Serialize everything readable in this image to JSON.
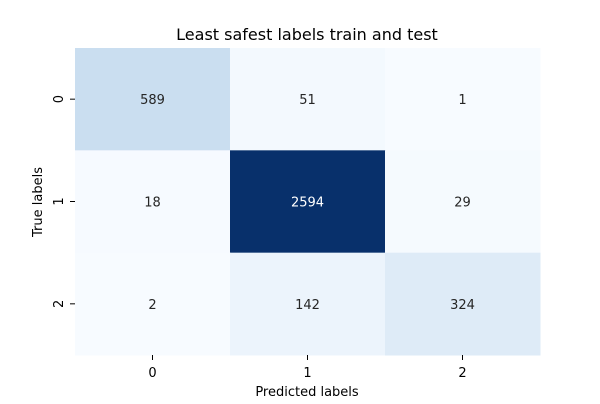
{
  "chart_data": {
    "type": "heatmap",
    "title": "Least safest labels train and test",
    "xlabel": "Predicted labels",
    "ylabel": "True labels",
    "x_tick_labels": [
      "0",
      "1",
      "2"
    ],
    "y_tick_labels": [
      "0",
      "1",
      "2"
    ],
    "values": [
      [
        589,
        51,
        1
      ],
      [
        18,
        2594,
        29
      ],
      [
        2,
        142,
        324
      ]
    ],
    "colormap": "Blues",
    "colorbar": false,
    "grid": false,
    "annotations": true
  }
}
